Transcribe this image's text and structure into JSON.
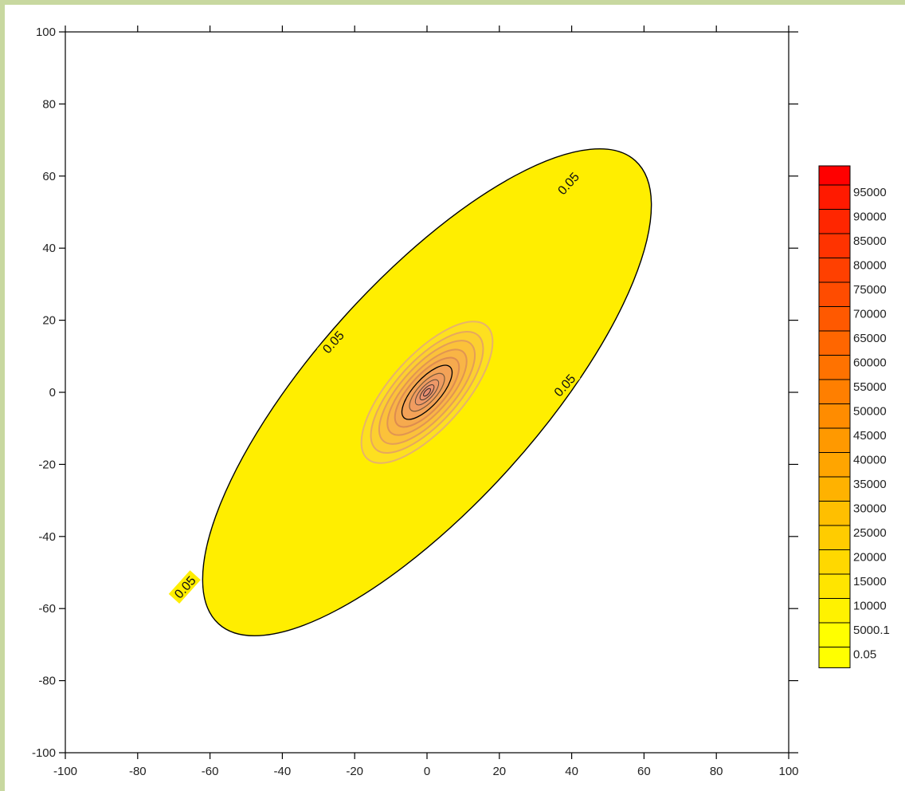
{
  "chart_data": {
    "type": "contour",
    "title": "",
    "xlabel": "",
    "ylabel": "",
    "xlim": [
      -100,
      100
    ],
    "ylim": [
      -100,
      100
    ],
    "x_ticks": [
      -100,
      -80,
      -60,
      -40,
      -20,
      0,
      20,
      40,
      60,
      80,
      100
    ],
    "y_ticks": [
      -100,
      -80,
      -60,
      -40,
      -20,
      0,
      20,
      40,
      60,
      80,
      100
    ],
    "grid": false,
    "center": [
      0,
      0
    ],
    "orientation_deg": 48,
    "outer_contour": {
      "level": 0.05,
      "extent_top_right": [
        55,
        58
      ],
      "extent_bottom_left": [
        -65,
        -66
      ],
      "labels": [
        {
          "text": "0.05",
          "x": -26,
          "y": 14
        },
        {
          "text": "0.05",
          "x": 38,
          "y": 2
        },
        {
          "text": "0.05",
          "x": 39,
          "y": 58
        },
        {
          "text": "0.05",
          "x": -67,
          "y": -54
        }
      ]
    },
    "legend": {
      "position": "right",
      "levels": [
        "95000",
        "90000",
        "85000",
        "80000",
        "75000",
        "70000",
        "65000",
        "60000",
        "55000",
        "50000",
        "45000",
        "40000",
        "35000",
        "30000",
        "25000",
        "20000",
        "15000",
        "10000",
        "5000.1",
        "0.05"
      ],
      "colors": [
        "#ff1a00",
        "#ff2600",
        "#ff3300",
        "#ff4000",
        "#ff4c00",
        "#ff5900",
        "#ff6600",
        "#ff7200",
        "#ff7f00",
        "#ff8c00",
        "#ff9900",
        "#ffa500",
        "#ffb200",
        "#ffbf00",
        "#ffcc00",
        "#ffd800",
        "#ffe500",
        "#fff200",
        "#ffff00",
        "#ffff00"
      ],
      "top_color": "#ff0000"
    }
  }
}
